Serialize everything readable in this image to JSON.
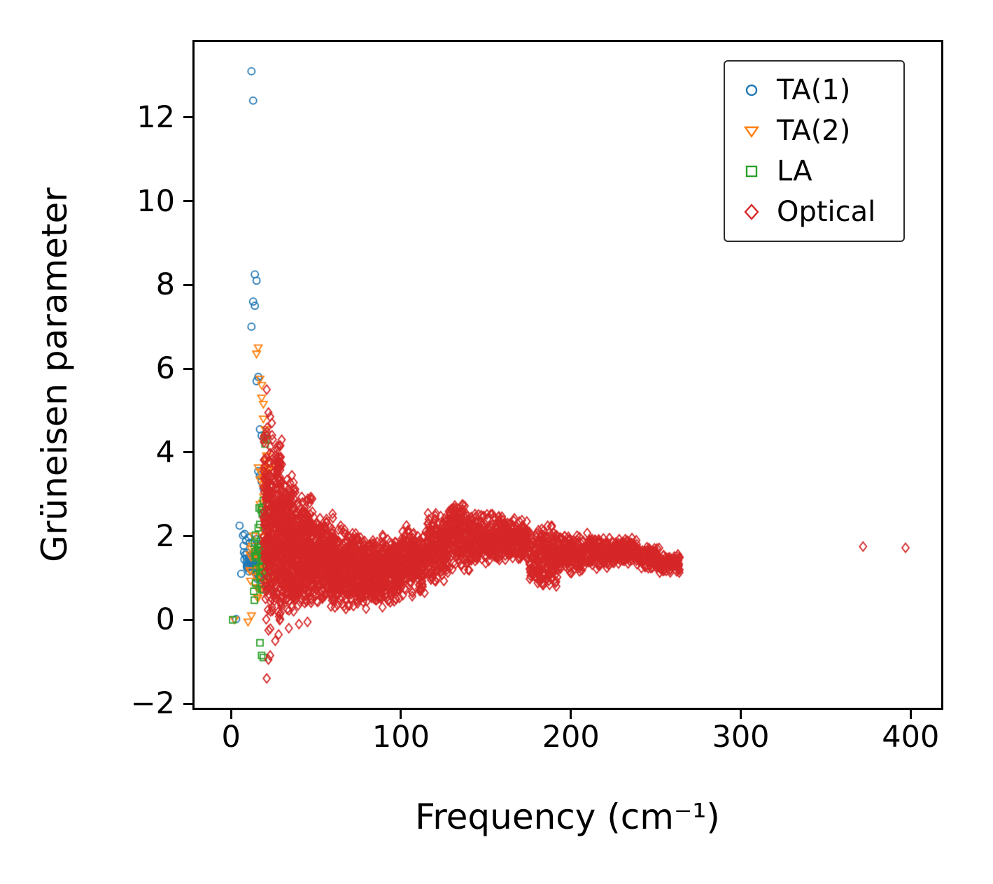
{
  "figure": {
    "background": "#ffffff",
    "spine_color": "#000000"
  },
  "chart_data": {
    "type": "scatter",
    "title": "",
    "xlabel": "Frequency (cm⁻¹)",
    "ylabel": "Grüneisen parameter",
    "xlim": [
      -21.5,
      418
    ],
    "ylim": [
      -2.1,
      13.8
    ],
    "xticks": [
      0,
      100,
      200,
      300,
      400
    ],
    "yticks": [
      -2,
      0,
      2,
      4,
      6,
      8,
      10,
      12
    ],
    "grid": false,
    "legend_position": "upper right",
    "marker_style": "open",
    "series": [
      {
        "name": "TA(1)",
        "marker": "circle",
        "color": "#1f77b4",
        "points": [
          [
            12,
            13.1
          ],
          [
            13,
            12.4
          ],
          [
            14,
            8.25
          ],
          [
            15,
            8.1
          ],
          [
            13,
            7.6
          ],
          [
            14,
            7.5
          ],
          [
            12,
            7.0
          ],
          [
            16,
            5.8
          ],
          [
            15,
            5.7
          ],
          [
            17,
            4.55
          ],
          [
            18,
            4.4
          ],
          [
            16,
            3.55
          ],
          [
            17,
            3.45
          ],
          [
            18,
            3.3
          ],
          [
            19,
            3.15
          ],
          [
            5,
            2.25
          ],
          [
            8,
            2.05
          ],
          [
            3,
            0.02
          ],
          [
            6,
            1.1
          ],
          [
            20,
            2.3
          ],
          [
            21,
            2.1
          ]
        ],
        "clusters": [
          {
            "x": [
              7,
              22
            ],
            "y": [
              0.7,
              2.2
            ],
            "n": 60
          },
          {
            "x": [
              9,
              20
            ],
            "y": [
              1.0,
              1.6
            ],
            "n": 35
          }
        ]
      },
      {
        "name": "TA(2)",
        "marker": "triangle-down",
        "color": "#ff7f0e",
        "points": [
          [
            16,
            6.5
          ],
          [
            15,
            6.35
          ],
          [
            17,
            5.75
          ],
          [
            18,
            5.6
          ],
          [
            18,
            5.3
          ],
          [
            19,
            5.15
          ],
          [
            19,
            4.8
          ],
          [
            20,
            4.55
          ],
          [
            20,
            4.3
          ],
          [
            10,
            -0.05
          ],
          [
            12,
            0.1
          ],
          [
            2,
            0.0
          ],
          [
            21,
            3.9
          ],
          [
            22,
            3.6
          ]
        ],
        "clusters": [
          {
            "x": [
              11,
              24
            ],
            "y": [
              0.3,
              2.6
            ],
            "n": 55
          },
          {
            "x": [
              15,
              23
            ],
            "y": [
              2.5,
              4.2
            ],
            "n": 20
          }
        ]
      },
      {
        "name": "LA",
        "marker": "square",
        "color": "#2ca02c",
        "points": [
          [
            20,
            4.4
          ],
          [
            21,
            4.3
          ],
          [
            20,
            4.2
          ],
          [
            21,
            3.0
          ],
          [
            19,
            2.85
          ],
          [
            17,
            -0.55
          ],
          [
            18,
            -0.85
          ],
          [
            19,
            -0.9
          ],
          [
            1,
            0.0
          ],
          [
            22,
            2.6
          ],
          [
            16,
            2.2
          ]
        ],
        "clusters": [
          {
            "x": [
              13,
              24
            ],
            "y": [
              0.4,
              2.3
            ],
            "n": 40
          },
          {
            "x": [
              16,
              23
            ],
            "y": [
              2.2,
              3.0
            ],
            "n": 12
          }
        ]
      },
      {
        "name": "Optical",
        "marker": "diamond",
        "color": "#d62728",
        "points": [
          [
            372,
            1.75
          ],
          [
            397,
            1.72
          ],
          [
            21,
            5.5
          ],
          [
            22,
            4.95
          ],
          [
            23,
            4.85
          ],
          [
            24,
            4.7
          ],
          [
            21,
            -1.4
          ],
          [
            22,
            -0.95
          ],
          [
            23,
            -0.85
          ],
          [
            26,
            -0.5
          ],
          [
            28,
            -0.35
          ],
          [
            34,
            -0.2
          ],
          [
            40,
            -0.1
          ],
          [
            45,
            -0.05
          ]
        ],
        "clusters": [
          {
            "x": [
              19,
              24
            ],
            "y": [
              -0.6,
              5.0
            ],
            "n": 150
          },
          {
            "x": [
              24,
              30
            ],
            "y": [
              -0.3,
              4.5
            ],
            "n": 240
          },
          {
            "x": [
              30,
              38
            ],
            "y": [
              0.0,
              3.5
            ],
            "n": 280
          },
          {
            "x": [
              38,
              48
            ],
            "y": [
              0.2,
              3.0
            ],
            "n": 320
          },
          {
            "x": [
              48,
              60
            ],
            "y": [
              0.3,
              2.6
            ],
            "n": 330
          },
          {
            "x": [
              60,
              75
            ],
            "y": [
              0.2,
              2.3
            ],
            "n": 340
          },
          {
            "x": [
              75,
              90
            ],
            "y": [
              0.2,
              2.1
            ],
            "n": 300
          },
          {
            "x": [
              90,
              100
            ],
            "y": [
              0.3,
              2.0
            ],
            "n": 200
          },
          {
            "x": [
              100,
              115
            ],
            "y": [
              0.5,
              2.3
            ],
            "n": 240
          },
          {
            "x": [
              115,
              128
            ],
            "y": [
              0.8,
              2.6
            ],
            "n": 220
          },
          {
            "x": [
              128,
              142
            ],
            "y": [
              1.1,
              2.9
            ],
            "n": 220
          },
          {
            "x": [
              142,
              158
            ],
            "y": [
              1.3,
              2.6
            ],
            "n": 220
          },
          {
            "x": [
              158,
              175
            ],
            "y": [
              1.4,
              2.5
            ],
            "n": 220
          },
          {
            "x": [
              175,
              192
            ],
            "y": [
              0.7,
              2.3
            ],
            "n": 210
          },
          {
            "x": [
              192,
              210
            ],
            "y": [
              1.1,
              2.1
            ],
            "n": 190
          },
          {
            "x": [
              210,
              226
            ],
            "y": [
              1.2,
              2.0
            ],
            "n": 160
          },
          {
            "x": [
              226,
              240
            ],
            "y": [
              1.3,
              2.0
            ],
            "n": 130
          },
          {
            "x": [
              240,
              252
            ],
            "y": [
              1.2,
              1.8
            ],
            "n": 110
          },
          {
            "x": [
              252,
              264
            ],
            "y": [
              1.1,
              1.6
            ],
            "n": 90
          }
        ]
      }
    ]
  }
}
